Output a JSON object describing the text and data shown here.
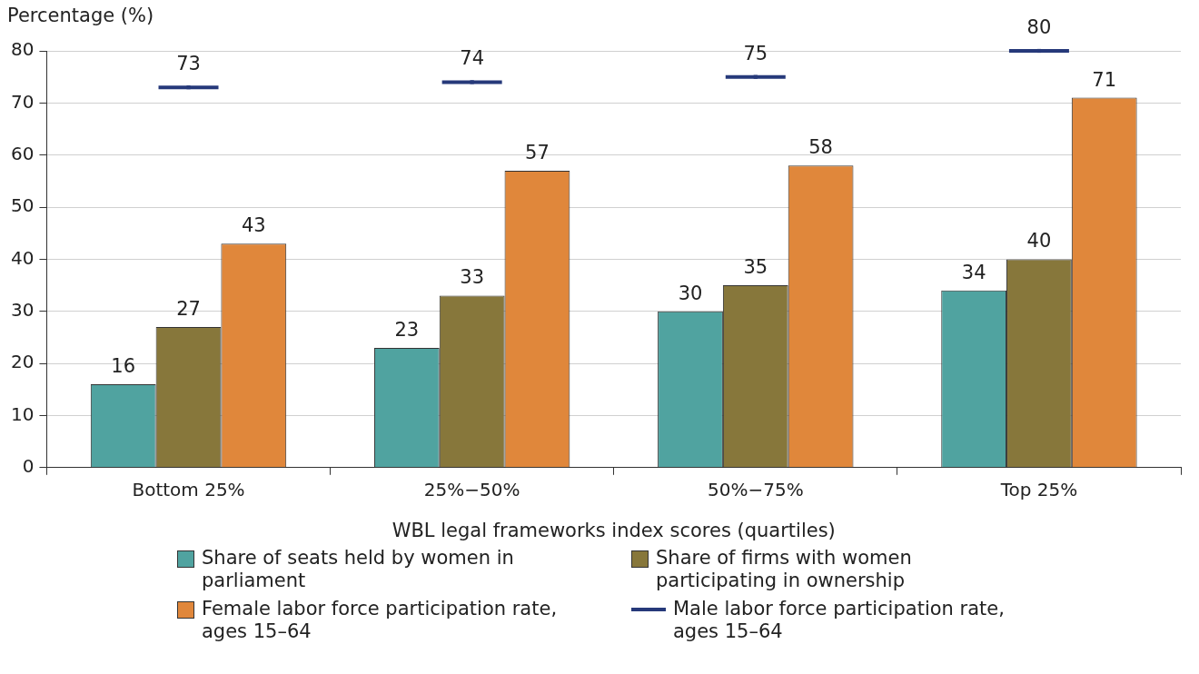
{
  "chart_data": {
    "type": "bar",
    "xlabel": "WBL legal frameworks index scores (quartiles)",
    "ylabel": "Percentage (%)",
    "categories": [
      "Bottom 25%",
      "25%−50%",
      "50%−75%",
      "Top 25%"
    ],
    "series": [
      {
        "name": "Share of seats held by women in parliament",
        "color": "#50a3a0",
        "values": [
          16,
          23,
          30,
          34
        ]
      },
      {
        "name": "Share of firms with women participating in ownership",
        "color": "#87773b",
        "values": [
          27,
          33,
          35,
          40
        ]
      },
      {
        "name": "Female labor force participation rate, ages 15–64",
        "color": "#e0873b",
        "values": [
          43,
          57,
          58,
          71
        ]
      },
      {
        "name": "Male labor force participation rate, ages 15–64",
        "color": "#26397a",
        "type": "scatter",
        "x": [
          "Bottom 25%",
          "25%−50%",
          "50%−75%",
          "Top 25%"
        ],
        "values": [
          73,
          74,
          75,
          80
        ]
      }
    ],
    "ylim": [
      0,
      80
    ],
    "yticks": [
      0,
      10,
      20,
      30,
      40,
      50,
      60,
      70,
      80
    ],
    "grid": "y",
    "legend": "bottom",
    "data_labels": true
  }
}
